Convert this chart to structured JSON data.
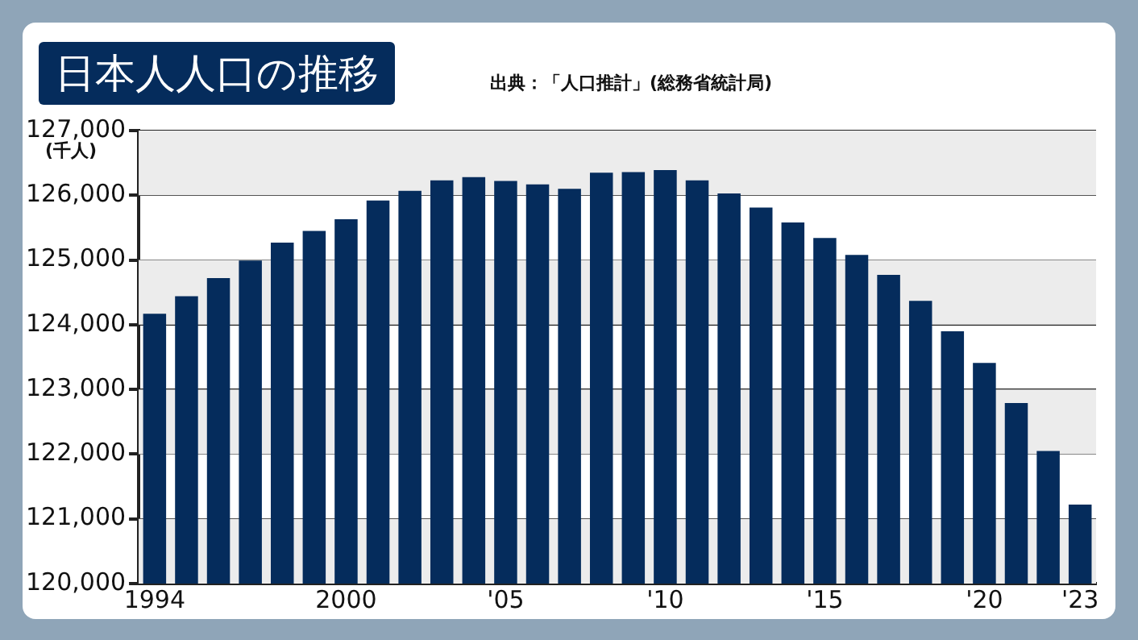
{
  "chart_data": {
    "type": "bar",
    "title": "日本人人口の推移",
    "annotations": [
      "出典：「人口推計」(総務省統計局)"
    ],
    "ylabel": "(千人)",
    "categories": [
      "1994",
      null,
      null,
      null,
      null,
      null,
      "2000",
      null,
      null,
      null,
      null,
      "'05",
      null,
      null,
      null,
      null,
      "'10",
      null,
      null,
      null,
      null,
      "'15",
      null,
      null,
      null,
      null,
      "'20",
      null,
      null,
      "'23"
    ],
    "values": [
      124170,
      124440,
      124720,
      124990,
      125270,
      125450,
      125630,
      125920,
      126070,
      126230,
      126280,
      126220,
      126170,
      126100,
      126350,
      126360,
      126390,
      126230,
      126030,
      125810,
      125580,
      125340,
      125080,
      124770,
      124370,
      123900,
      123410,
      122790,
      122050,
      121220
    ],
    "color": "#052c5c",
    "ylim": [
      120000,
      127000
    ],
    "yticks": [
      {
        "value": 120000,
        "label": "120,000"
      },
      {
        "value": 121000,
        "label": "121,000"
      },
      {
        "value": 122000,
        "label": "122,000"
      },
      {
        "value": 123000,
        "label": "123,000"
      },
      {
        "value": 124000,
        "label": "124,000"
      },
      {
        "value": 125000,
        "label": "125,000"
      },
      {
        "value": 126000,
        "label": "126,000"
      },
      {
        "value": 127000,
        "label": "127,000"
      }
    ],
    "grid": "y",
    "legend": false
  }
}
